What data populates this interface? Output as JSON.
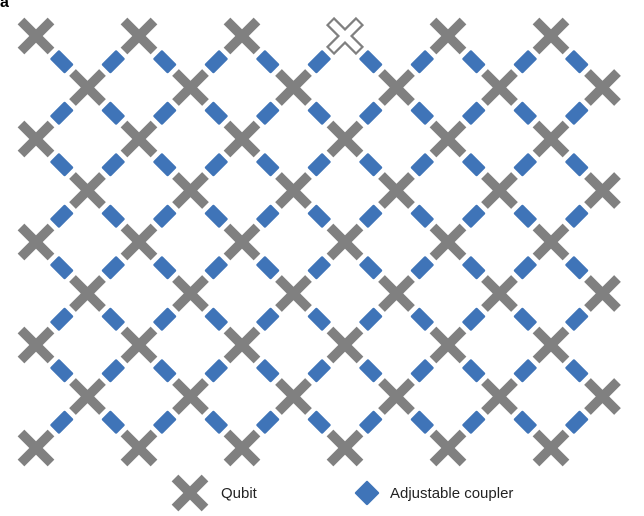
{
  "panel_label": "a",
  "legend": {
    "qubit_label": "Qubit",
    "coupler_label": "Adjustable coupler"
  },
  "lattice": {
    "rows": 9,
    "cols": 12,
    "missing_qubit": {
      "row": 0,
      "col": 6
    }
  },
  "colors": {
    "qubit": "#808080",
    "coupler": "#3f74b8",
    "missing_qubit_stroke": "#808080"
  },
  "icons": {
    "qubit": "cross-icon",
    "coupler": "diamond-icon"
  }
}
